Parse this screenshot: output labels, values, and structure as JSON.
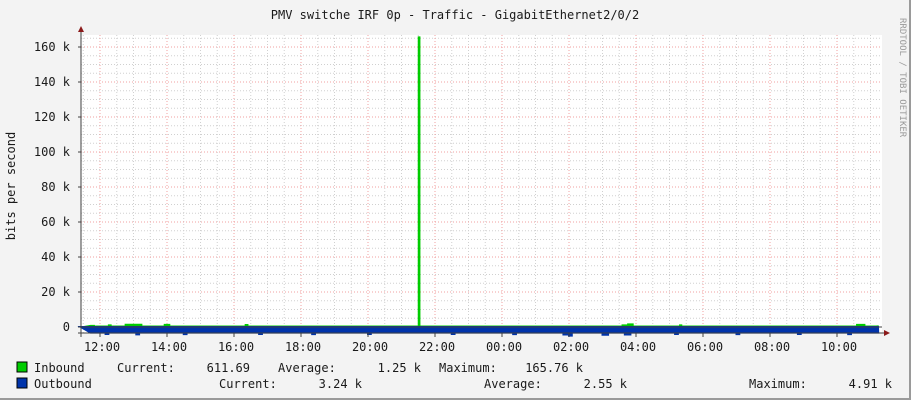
{
  "chart_data": {
    "type": "area",
    "title": "PMV switche IRF 0p - Traffic - GigabitEthernet2/0/2",
    "ylabel": "bits per second",
    "watermark": "RRDTOOL / TOBI OETIKER",
    "ylim": [
      -3800,
      167000
    ],
    "yticks": [
      {
        "value": 0,
        "label": "0"
      },
      {
        "value": 20000,
        "label": "20 k"
      },
      {
        "value": 40000,
        "label": "40 k"
      },
      {
        "value": 60000,
        "label": "60 k"
      },
      {
        "value": 80000,
        "label": "80 k"
      },
      {
        "value": 100000,
        "label": "100 k"
      },
      {
        "value": 120000,
        "label": "120 k"
      },
      {
        "value": 140000,
        "label": "140 k"
      },
      {
        "value": 160000,
        "label": "160 k"
      }
    ],
    "xrange": [
      "11:43",
      "11:12"
    ],
    "xticks": [
      "12:00",
      "14:00",
      "16:00",
      "18:00",
      "20:00",
      "22:00",
      "00:00",
      "02:00",
      "04:00",
      "06:00",
      "08:00",
      "10:00"
    ],
    "grid": true,
    "colors": {
      "inbound": "#00cc00",
      "outbound": "#0033aa",
      "major_grid": "#f0a0a0",
      "minor_grid": "#d0d0d0",
      "axis": "#404040",
      "arrow": "#8b1a1a"
    },
    "series": [
      {
        "name": "Inbound",
        "points": [
          [
            "11:43",
            900
          ],
          [
            "11:50",
            600
          ],
          [
            "12:15",
            1200
          ],
          [
            "12:20",
            600
          ],
          [
            "12:45",
            1600
          ],
          [
            "13:15",
            600
          ],
          [
            "13:55",
            1500
          ],
          [
            "14:05",
            600
          ],
          [
            "16:20",
            1400
          ],
          [
            "16:25",
            600
          ],
          [
            "21:28",
            600
          ],
          [
            "21:30",
            165760
          ],
          [
            "21:33",
            600
          ],
          [
            "03:35",
            1200
          ],
          [
            "03:45",
            1800
          ],
          [
            "03:55",
            600
          ],
          [
            "05:18",
            1200
          ],
          [
            "05:22",
            600
          ],
          [
            "10:35",
            1500
          ],
          [
            "10:50",
            600
          ],
          [
            "11:12",
            611.69
          ]
        ],
        "legend": {
          "current_label": "Current:",
          "current": "611.69",
          "average_label": "Average:",
          "average": "1.25 k",
          "maximum_label": "Maximum:",
          "maximum": "165.76 k"
        }
      },
      {
        "name": "Outbound",
        "points": [
          [
            "11:43",
            -3200
          ],
          [
            "12:10",
            -4000
          ],
          [
            "12:15",
            -3200
          ],
          [
            "13:05",
            -4200
          ],
          [
            "13:10",
            -3200
          ],
          [
            "14:30",
            -4100
          ],
          [
            "14:35",
            -3200
          ],
          [
            "16:45",
            -4000
          ],
          [
            "16:50",
            -3200
          ],
          [
            "18:20",
            -4100
          ],
          [
            "18:25",
            -3200
          ],
          [
            "20:00",
            -4000
          ],
          [
            "20:05",
            -3200
          ],
          [
            "22:30",
            -4000
          ],
          [
            "22:35",
            -3200
          ],
          [
            "00:20",
            -4100
          ],
          [
            "00:25",
            -3200
          ],
          [
            "01:50",
            -4300
          ],
          [
            "02:00",
            -4910
          ],
          [
            "02:05",
            -3200
          ],
          [
            "03:00",
            -4400
          ],
          [
            "03:10",
            -3200
          ],
          [
            "03:40",
            -4300
          ],
          [
            "03:50",
            -3200
          ],
          [
            "05:10",
            -4000
          ],
          [
            "05:15",
            -3200
          ],
          [
            "07:00",
            -4100
          ],
          [
            "07:05",
            -3200
          ],
          [
            "08:50",
            -4000
          ],
          [
            "08:55",
            -3200
          ],
          [
            "10:20",
            -4100
          ],
          [
            "10:25",
            -3200
          ],
          [
            "11:12",
            -3240
          ]
        ],
        "legend": {
          "current_label": "Current:",
          "current": "3.24 k",
          "average_label": "Average:",
          "average": "2.55 k",
          "maximum_label": "Maximum:",
          "maximum": "4.91 k"
        }
      }
    ]
  }
}
